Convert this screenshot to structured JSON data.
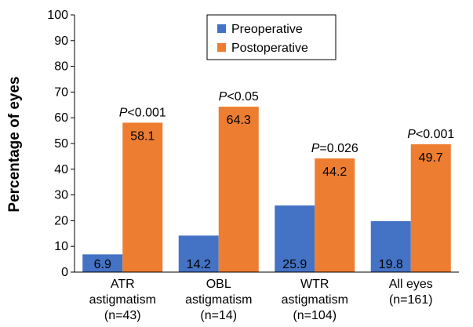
{
  "chart_data": {
    "type": "bar",
    "ylabel": "Percentage of eyes",
    "ylim": [
      0,
      100
    ],
    "yticks": [
      0,
      10,
      20,
      30,
      40,
      50,
      60,
      70,
      80,
      90,
      100
    ],
    "categories": [
      [
        "ATR",
        "astigmatism",
        "(n=43)"
      ],
      [
        "OBL",
        "astigmatism",
        "(n=14)"
      ],
      [
        "WTR",
        "astigmatism",
        "(n=104)"
      ],
      [
        "All eyes",
        "(n=161)"
      ]
    ],
    "series": [
      {
        "name": "Preoperative",
        "color": "#4472C4",
        "values": [
          6.9,
          14.2,
          25.9,
          19.8
        ],
        "labels": [
          "6.9",
          "14.2",
          "25.9",
          "19.8"
        ]
      },
      {
        "name": "Postoperative",
        "color": "#ED7D31",
        "values": [
          58.1,
          64.3,
          44.2,
          49.7
        ],
        "labels": [
          "58.1",
          "64.3",
          "44.2",
          "49.7"
        ]
      }
    ],
    "annotations": [
      {
        "italic": "P",
        "rest": "<0.001"
      },
      {
        "italic": "P",
        "rest": "<0.05"
      },
      {
        "italic": "P",
        "rest": "=0.026"
      },
      {
        "italic": "P",
        "rest": "<0.001"
      }
    ],
    "legend": {
      "position": "top-center"
    },
    "grid": false
  }
}
